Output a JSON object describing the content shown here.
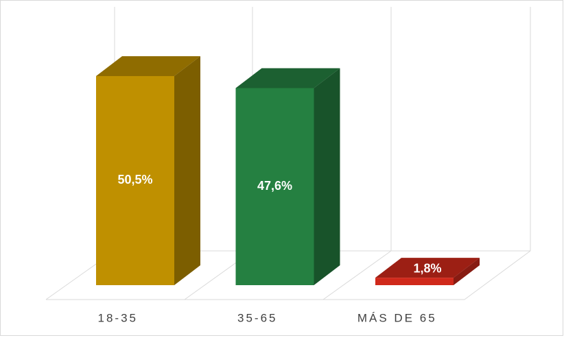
{
  "chart_data": {
    "type": "bar3d",
    "categories": [
      "18-35",
      "35-65",
      "MÁS DE 65"
    ],
    "values": [
      50.5,
      47.6,
      1.8
    ],
    "value_labels": [
      "50,5%",
      "47,6%",
      "1,8%"
    ],
    "colors": [
      "#bf9000",
      "#258041",
      "#d0291b"
    ]
  }
}
